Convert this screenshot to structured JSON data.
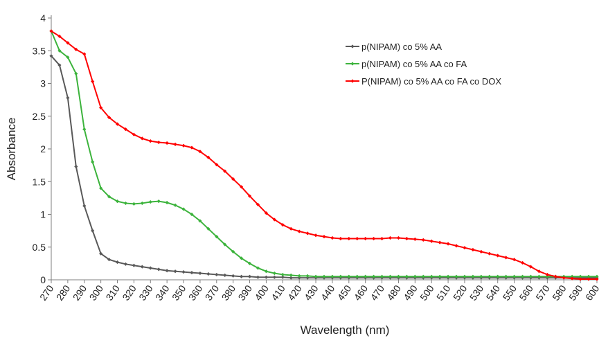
{
  "chart_data": {
    "type": "line",
    "xlabel": "Wavelength (nm)",
    "ylabel": "Absorbance",
    "xlim": [
      270,
      600
    ],
    "ylim": [
      0,
      4
    ],
    "y_ticks": [
      0,
      0.5,
      1,
      1.5,
      2,
      2.5,
      3,
      3.5,
      4
    ],
    "x_ticks": [
      270,
      280,
      290,
      300,
      310,
      320,
      330,
      340,
      350,
      360,
      370,
      380,
      390,
      400,
      410,
      420,
      430,
      440,
      450,
      460,
      470,
      480,
      490,
      500,
      510,
      520,
      530,
      540,
      550,
      560,
      570,
      580,
      590,
      600
    ],
    "grid": false,
    "legend_position": "top-right",
    "x": [
      270,
      275,
      280,
      285,
      290,
      295,
      300,
      305,
      310,
      315,
      320,
      325,
      330,
      335,
      340,
      345,
      350,
      355,
      360,
      365,
      370,
      375,
      380,
      385,
      390,
      395,
      400,
      405,
      410,
      415,
      420,
      425,
      430,
      435,
      440,
      445,
      450,
      455,
      460,
      465,
      470,
      475,
      480,
      485,
      490,
      495,
      500,
      505,
      510,
      515,
      520,
      525,
      530,
      535,
      540,
      545,
      550,
      555,
      560,
      565,
      570,
      575,
      580,
      585,
      590,
      595,
      600
    ],
    "series": [
      {
        "name": "p(NIPAM) co 5% AA",
        "color": "#595959",
        "values": [
          3.42,
          3.28,
          2.78,
          1.73,
          1.13,
          0.75,
          0.4,
          0.31,
          0.27,
          0.24,
          0.22,
          0.2,
          0.18,
          0.16,
          0.14,
          0.13,
          0.12,
          0.11,
          0.1,
          0.09,
          0.08,
          0.07,
          0.06,
          0.05,
          0.05,
          0.04,
          0.04,
          0.04,
          0.04,
          0.03,
          0.03,
          0.03,
          0.03,
          0.03,
          0.03,
          0.03,
          0.03,
          0.03,
          0.03,
          0.03,
          0.03,
          0.03,
          0.03,
          0.03,
          0.03,
          0.03,
          0.03,
          0.03,
          0.03,
          0.03,
          0.03,
          0.03,
          0.03,
          0.03,
          0.03,
          0.03,
          0.03,
          0.03,
          0.03,
          0.03,
          0.03,
          0.03,
          0.03,
          0.03,
          0.03,
          0.03,
          0.03
        ]
      },
      {
        "name": "p(NIPAM) co 5% AA co FA",
        "color": "#3cb33c",
        "values": [
          3.8,
          3.5,
          3.4,
          3.15,
          2.3,
          1.8,
          1.4,
          1.27,
          1.2,
          1.17,
          1.16,
          1.17,
          1.19,
          1.2,
          1.18,
          1.14,
          1.08,
          1.0,
          0.9,
          0.78,
          0.66,
          0.54,
          0.43,
          0.33,
          0.25,
          0.18,
          0.13,
          0.1,
          0.08,
          0.07,
          0.06,
          0.06,
          0.05,
          0.05,
          0.05,
          0.05,
          0.05,
          0.05,
          0.05,
          0.05,
          0.05,
          0.05,
          0.05,
          0.05,
          0.05,
          0.05,
          0.05,
          0.05,
          0.05,
          0.05,
          0.05,
          0.05,
          0.05,
          0.05,
          0.05,
          0.05,
          0.05,
          0.05,
          0.05,
          0.05,
          0.05,
          0.05,
          0.05,
          0.05,
          0.05,
          0.05,
          0.05
        ]
      },
      {
        "name": "P(NIPAM) co 5% AA co FA co DOX",
        "color": "#ff0000",
        "values": [
          3.8,
          3.72,
          3.62,
          3.52,
          3.45,
          3.03,
          2.63,
          2.48,
          2.38,
          2.3,
          2.22,
          2.16,
          2.12,
          2.1,
          2.09,
          2.07,
          2.05,
          2.02,
          1.96,
          1.87,
          1.76,
          1.66,
          1.54,
          1.42,
          1.28,
          1.15,
          1.02,
          0.92,
          0.84,
          0.78,
          0.74,
          0.71,
          0.68,
          0.66,
          0.64,
          0.63,
          0.63,
          0.63,
          0.63,
          0.63,
          0.63,
          0.64,
          0.64,
          0.63,
          0.62,
          0.61,
          0.59,
          0.57,
          0.55,
          0.52,
          0.49,
          0.46,
          0.43,
          0.4,
          0.37,
          0.34,
          0.31,
          0.26,
          0.2,
          0.13,
          0.08,
          0.05,
          0.03,
          0.02,
          0.01,
          0.01,
          0.01
        ]
      }
    ]
  }
}
